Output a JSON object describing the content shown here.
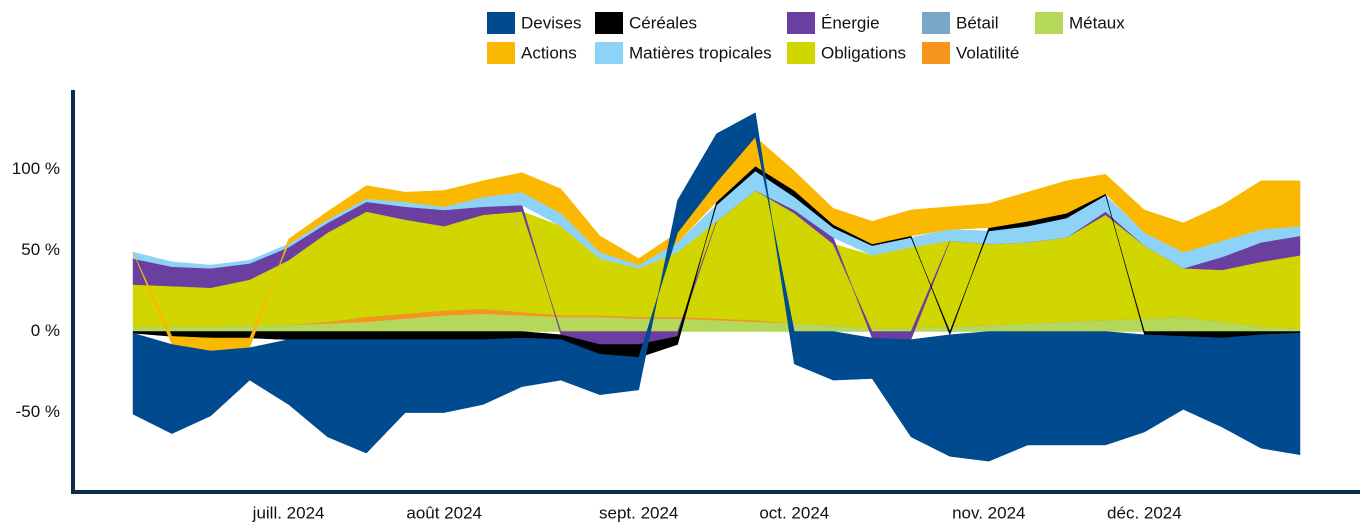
{
  "chart_data": {
    "type": "stacked-area",
    "categories": [
      null,
      null,
      null,
      null,
      "juill. 2024",
      null,
      null,
      null,
      "août 2024",
      null,
      null,
      null,
      null,
      "sept. 2024",
      null,
      null,
      null,
      "oct. 2024",
      null,
      null,
      null,
      null,
      "nov. 2024",
      null,
      null,
      null,
      "déc. 2024",
      null,
      null,
      null,
      null
    ],
    "series": [
      {
        "name": "Métaux",
        "color": "#b5d85a",
        "values": [
          3,
          3,
          3,
          4,
          4,
          5,
          6,
          8,
          10,
          11,
          10,
          9,
          9,
          8,
          8,
          7,
          6,
          5,
          4,
          2,
          2,
          3,
          4,
          5,
          6,
          7,
          8,
          9,
          6,
          3,
          2
        ]
      },
      {
        "name": "Volatilité",
        "color": "#f7941d",
        "values": [
          0,
          0,
          0,
          0,
          0,
          1,
          3,
          3,
          3,
          3,
          2,
          1,
          1,
          1,
          1,
          1,
          1,
          0,
          0,
          0,
          0,
          0,
          0,
          0,
          0,
          0,
          0,
          0,
          0,
          0,
          0
        ]
      },
      {
        "name": "Bétail",
        "color": "#7ba7c7",
        "values": [
          0,
          0,
          0,
          0,
          0,
          0,
          0,
          0,
          0,
          0,
          0,
          0,
          0,
          0,
          0,
          0,
          0,
          0,
          0,
          0,
          0,
          0,
          0,
          0,
          0,
          0,
          0,
          0,
          0,
          0,
          0
        ]
      },
      {
        "name": "Obligations",
        "color": "#d2d600",
        "values": [
          26,
          25,
          24,
          28,
          40,
          55,
          65,
          58,
          52,
          58,
          62,
          55,
          35,
          30,
          40,
          60,
          80,
          68,
          50,
          45,
          50,
          53,
          50,
          50,
          52,
          65,
          45,
          30,
          32,
          40,
          45
        ]
      },
      {
        "name": "Énergie",
        "color": "#6b3fa0",
        "values": [
          16,
          12,
          12,
          10,
          8,
          6,
          6,
          8,
          10,
          5,
          4,
          -2,
          -8,
          -8,
          -3,
          0,
          0,
          2,
          4,
          -4,
          -5,
          0,
          0,
          0,
          0,
          2,
          0,
          0,
          8,
          12,
          12
        ]
      },
      {
        "name": "Matières tropicales",
        "color": "#8dd3f8",
        "values": [
          4,
          3,
          2,
          2,
          2,
          2,
          2,
          3,
          2,
          6,
          8,
          8,
          4,
          2,
          6,
          10,
          12,
          8,
          6,
          6,
          6,
          7,
          8,
          10,
          12,
          10,
          8,
          10,
          10,
          8,
          6
        ]
      },
      {
        "name": "Céréales",
        "color": "#000000",
        "values": [
          -1,
          -3,
          -4,
          -4,
          -5,
          -5,
          -5,
          -5,
          -5,
          -5,
          -4,
          -3,
          -6,
          -8,
          -5,
          2,
          3,
          4,
          2,
          1,
          1,
          -2,
          2,
          3,
          3,
          1,
          -2,
          -3,
          -4,
          -2,
          -1
        ]
      },
      {
        "name": "Actions",
        "color": "#fbb800",
        "values": [
          0,
          -5,
          -8,
          -6,
          3,
          5,
          8,
          6,
          10,
          10,
          12,
          15,
          10,
          4,
          6,
          12,
          18,
          12,
          10,
          14,
          16,
          14,
          15,
          18,
          20,
          12,
          14,
          18,
          22,
          30,
          28
        ]
      },
      {
        "name": "Devises",
        "color": "#004a8f",
        "values": [
          -50,
          -55,
          -40,
          -20,
          -40,
          -60,
          -70,
          -45,
          -45,
          -40,
          -30,
          -25,
          -25,
          -20,
          20,
          30,
          15,
          -20,
          -30,
          -25,
          -60,
          -75,
          -80,
          -70,
          -70,
          -70,
          -60,
          -45,
          -55,
          -70,
          -75
        ]
      }
    ],
    "ylim": [
      -99,
      149
    ],
    "yticks": [
      {
        "value": -50,
        "label": "-50 %"
      },
      {
        "value": 0,
        "label": "0 %"
      },
      {
        "value": 50,
        "label": "50 %"
      },
      {
        "value": 100,
        "label": "100 %"
      }
    ]
  }
}
